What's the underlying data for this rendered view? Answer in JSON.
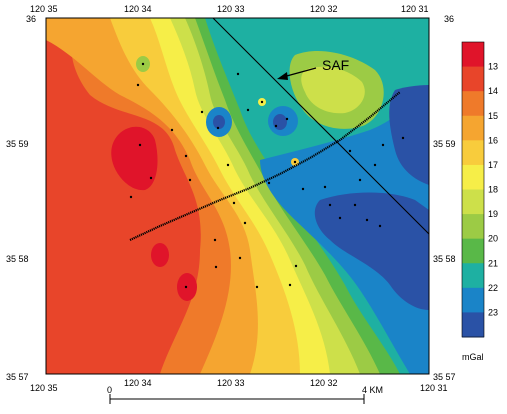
{
  "map": {
    "top_labels": [
      "120 35",
      "120 34",
      "120 33",
      "120 32",
      "120 31"
    ],
    "bottom_labels": [
      "120 35",
      "120 34",
      "120 33",
      "120 32",
      "120 31"
    ],
    "inner_lon_labels": [
      "120 34",
      "120 33",
      "120 32"
    ],
    "left_labels": [
      "36",
      "35 59",
      "35 58",
      "35 57"
    ],
    "right_labels": [
      "36",
      "35 59",
      "35 58",
      "35 57"
    ],
    "fault_label": "SAF"
  },
  "legend": {
    "values": [
      "13",
      "14",
      "15",
      "16",
      "17",
      "18",
      "19",
      "20",
      "21",
      "22",
      "23"
    ],
    "colors": [
      "#e0142a",
      "#e8452a",
      "#ef7a2a",
      "#f5a530",
      "#f8cc3c",
      "#f6ee48",
      "#cde04a",
      "#9ccb45",
      "#59b848",
      "#1eb0a2",
      "#1a84c8",
      "#2a52a6"
    ],
    "unit": "mGal"
  },
  "scalebar": {
    "start_label": "0",
    "end_label": "4 KM"
  }
}
